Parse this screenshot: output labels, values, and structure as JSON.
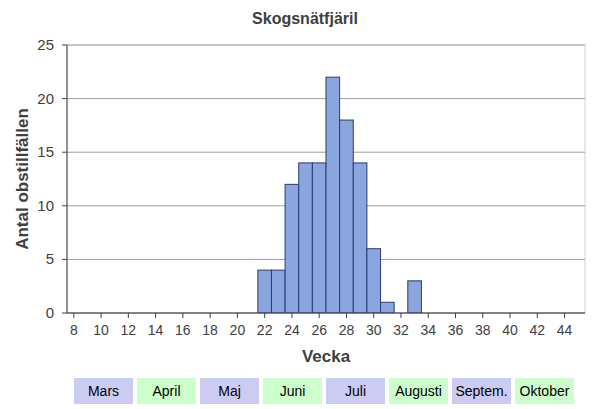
{
  "chart_data": {
    "type": "histogram",
    "title": "Skogsnätfjäril",
    "x_label": "Vecka",
    "y_label": "Antal obstillfällen",
    "bins": [
      21.5,
      22.5,
      23.5,
      24.5,
      25.5,
      26.5,
      27.5,
      28.5,
      29.5,
      30.5,
      31.5,
      32.5,
      33.5
    ],
    "values": [
      4,
      4,
      12,
      14,
      14,
      22,
      18,
      14,
      6,
      1,
      0,
      3
    ],
    "color": "#8ba6de",
    "xlim": [
      7.5,
      45.5
    ],
    "xticks": [
      8,
      10,
      12,
      14,
      16,
      18,
      20,
      22,
      24,
      26,
      28,
      30,
      32,
      34,
      36,
      38,
      40,
      42,
      44
    ],
    "ylim": [
      0,
      25
    ],
    "yticks": [
      0,
      5,
      10,
      15,
      20,
      25
    ],
    "grid": true,
    "annotations": [
      "Mars",
      "April",
      "Maj",
      "Juni",
      "Juli",
      "Augusti",
      "Septem.",
      "Oktober"
    ]
  }
}
